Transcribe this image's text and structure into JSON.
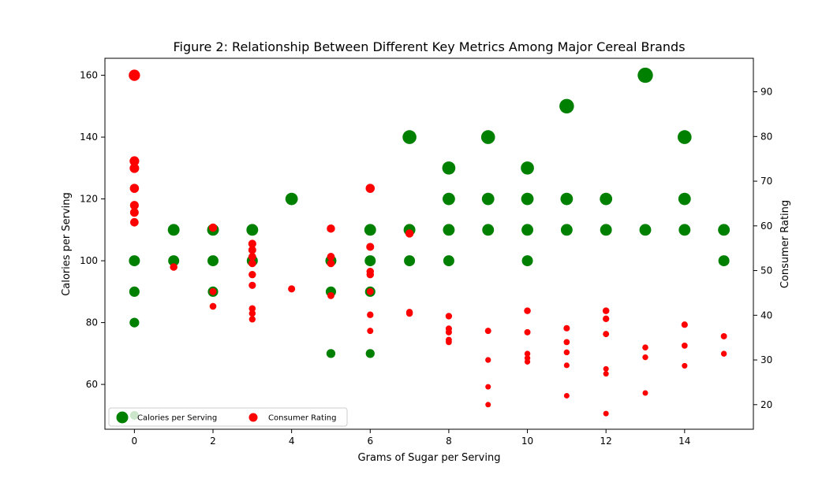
{
  "chart_data": {
    "type": "scatter",
    "title": "Figure 2: Relationship Between Different Key Metrics Among Major Cereal Brands",
    "xlabel": "Grams of Sugar per Serving",
    "ylabel_left": "Calories per Serving",
    "ylabel_right": "Consumer Rating",
    "xlim": [
      -0.75,
      15.75
    ],
    "ylim_left": [
      45.5,
      165.5
    ],
    "ylim_right": [
      14.5,
      97.5
    ],
    "xticks": [
      0,
      2,
      4,
      6,
      8,
      10,
      12,
      14
    ],
    "yticks_left": [
      60,
      80,
      100,
      120,
      140,
      160
    ],
    "yticks_right": [
      20,
      30,
      40,
      50,
      60,
      70,
      80,
      90
    ],
    "grid": false,
    "legend": {
      "placement": "lower-left",
      "entries": [
        "Calories per Serving",
        "Consumer Rating"
      ]
    },
    "series": [
      {
        "name": "Calories per Serving",
        "axis": "left",
        "color": "#008000",
        "points": [
          [
            0,
            50
          ],
          [
            0,
            80
          ],
          [
            0,
            90
          ],
          [
            0,
            100
          ],
          [
            1,
            100
          ],
          [
            1,
            110
          ],
          [
            2,
            90
          ],
          [
            2,
            100
          ],
          [
            2,
            110
          ],
          [
            3,
            100
          ],
          [
            3,
            110
          ],
          [
            4,
            120
          ],
          [
            5,
            70
          ],
          [
            5,
            90
          ],
          [
            5,
            100
          ],
          [
            6,
            70
          ],
          [
            6,
            90
          ],
          [
            6,
            100
          ],
          [
            6,
            110
          ],
          [
            7,
            100
          ],
          [
            7,
            110
          ],
          [
            7,
            140
          ],
          [
            8,
            100
          ],
          [
            8,
            110
          ],
          [
            8,
            120
          ],
          [
            8,
            130
          ],
          [
            9,
            110
          ],
          [
            9,
            120
          ],
          [
            9,
            140
          ],
          [
            10,
            100
          ],
          [
            10,
            110
          ],
          [
            10,
            120
          ],
          [
            10,
            130
          ],
          [
            11,
            110
          ],
          [
            11,
            120
          ],
          [
            11,
            150
          ],
          [
            12,
            110
          ],
          [
            12,
            120
          ],
          [
            13,
            110
          ],
          [
            13,
            160
          ],
          [
            14,
            110
          ],
          [
            14,
            120
          ],
          [
            14,
            140
          ],
          [
            15,
            100
          ],
          [
            15,
            110
          ]
        ]
      },
      {
        "name": "Consumer Rating",
        "axis": "right",
        "color": "#ff0000",
        "points": [
          [
            0,
            93.7
          ],
          [
            0,
            74.5
          ],
          [
            0,
            72.9
          ],
          [
            0,
            68.4
          ],
          [
            0,
            64.6
          ],
          [
            0,
            63.0
          ],
          [
            0,
            60.8
          ],
          [
            1,
            50.8
          ],
          [
            2,
            59.6
          ],
          [
            2,
            45.3
          ],
          [
            2,
            42.0
          ],
          [
            3,
            56.0
          ],
          [
            3,
            54.6
          ],
          [
            3,
            53.1
          ],
          [
            3,
            51.6
          ],
          [
            3,
            49.1
          ],
          [
            3,
            46.7
          ],
          [
            3,
            41.5
          ],
          [
            3,
            40.4
          ],
          [
            3,
            39.1
          ],
          [
            4,
            45.9
          ],
          [
            5,
            59.4
          ],
          [
            5,
            53.1
          ],
          [
            5,
            51.6
          ],
          [
            5,
            44.4
          ],
          [
            6,
            68.4
          ],
          [
            6,
            55.3
          ],
          [
            6,
            49.8
          ],
          [
            6,
            49.1
          ],
          [
            6,
            45.3
          ],
          [
            6,
            40.1
          ],
          [
            6,
            36.5
          ],
          [
            7,
            58.3
          ],
          [
            7,
            40.7
          ],
          [
            7,
            40.4
          ],
          [
            8,
            39.8
          ],
          [
            8,
            37.0
          ],
          [
            8,
            36.2
          ],
          [
            8,
            34.5
          ],
          [
            8,
            34.0
          ],
          [
            9,
            36.5
          ],
          [
            9,
            30.0
          ],
          [
            9,
            24.0
          ],
          [
            9,
            20.0
          ],
          [
            10,
            41.0
          ],
          [
            10,
            36.2
          ],
          [
            10,
            31.4
          ],
          [
            10,
            30.4
          ],
          [
            10,
            29.6
          ],
          [
            11,
            37.1
          ],
          [
            11,
            34.0
          ],
          [
            11,
            31.7
          ],
          [
            11,
            28.8
          ],
          [
            11,
            22.0
          ],
          [
            12,
            41.0
          ],
          [
            12,
            39.2
          ],
          [
            12,
            35.8
          ],
          [
            12,
            28.0
          ],
          [
            12,
            26.9
          ],
          [
            12,
            18.0
          ],
          [
            13,
            32.8
          ],
          [
            13,
            30.6
          ],
          [
            13,
            22.6
          ],
          [
            14,
            37.9
          ],
          [
            14,
            33.2
          ],
          [
            14,
            28.7
          ],
          [
            15,
            35.3
          ],
          [
            15,
            31.4
          ]
        ]
      }
    ]
  }
}
